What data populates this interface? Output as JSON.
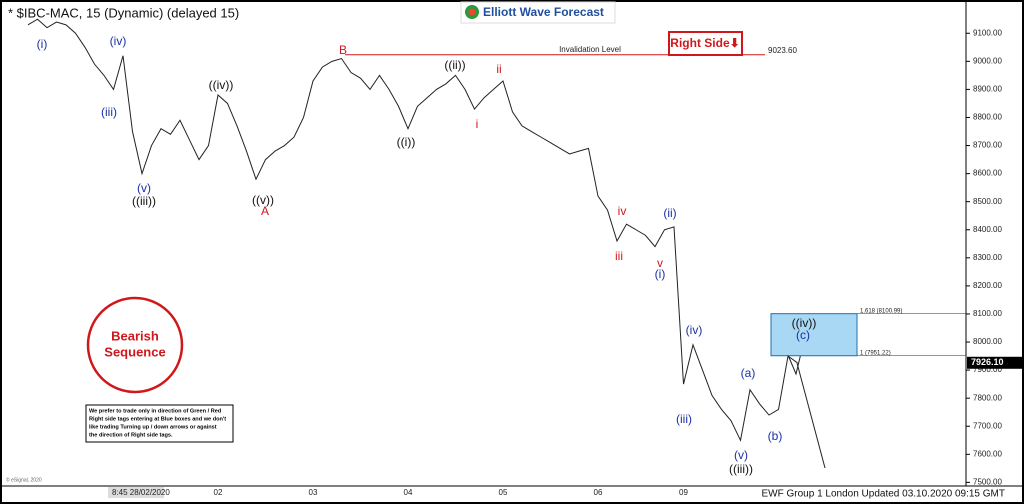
{
  "chart_data": {
    "type": "line",
    "title": "* $IBC-MAC, 15 (Dynamic) (delayed 15)",
    "brand": "Elliott Wave Forecast",
    "categories": [
      null,
      null,
      null,
      null,
      null,
      null,
      null,
      null,
      null,
      null,
      null,
      null,
      null,
      null,
      null,
      null,
      null,
      null,
      null,
      null,
      "02",
      null,
      null,
      null,
      null,
      null,
      null,
      null,
      null,
      null,
      "03",
      null,
      null,
      null,
      null,
      null,
      null,
      null,
      null,
      null,
      "04",
      null,
      null,
      null,
      null,
      null,
      null,
      null,
      null,
      null,
      "05",
      null,
      null,
      null,
      null,
      null,
      null,
      null,
      null,
      null,
      "06",
      null,
      null,
      null,
      null,
      null,
      null,
      null,
      null,
      "09",
      null,
      null,
      null,
      null,
      null,
      null,
      null,
      null,
      null,
      null,
      null,
      null
    ],
    "values": [
      9130,
      9150,
      9120,
      9140,
      9130,
      9100,
      9050,
      8990,
      8950,
      8900,
      9020,
      8750,
      8600,
      8700,
      8760,
      8740,
      8790,
      8720,
      8650,
      8700,
      8880,
      8850,
      8770,
      8680,
      8580,
      8650,
      8680,
      8700,
      8730,
      8800,
      8930,
      8980,
      9000,
      9010,
      8960,
      8940,
      8900,
      8950,
      8900,
      8840,
      8760,
      8840,
      8870,
      8900,
      8920,
      8950,
      8900,
      8830,
      8870,
      8900,
      8930,
      8820,
      8770,
      8750,
      8730,
      8710,
      8690,
      8670,
      8680,
      8690,
      8520,
      8470,
      8360,
      8420,
      8400,
      8380,
      8340,
      8400,
      8410,
      7850,
      7990,
      7900,
      7810,
      7760,
      7720,
      7650,
      7830,
      7780,
      7740,
      7760,
      7950,
      7926
    ],
    "color": "#222222",
    "ylim": [
      7480,
      9190
    ],
    "yticks": [
      {
        "value": 7500,
        "label": "7500.00"
      },
      {
        "value": 7600,
        "label": "7600.00"
      },
      {
        "value": 7700,
        "label": "7700.00"
      },
      {
        "value": 7800,
        "label": "7800.00"
      },
      {
        "value": 7900,
        "label": "7900.00"
      },
      {
        "value": 8000,
        "label": "8000.00"
      },
      {
        "value": 8100,
        "label": "8100.00"
      },
      {
        "value": 8200,
        "label": "8200.00"
      },
      {
        "value": 8300,
        "label": "8300.00"
      },
      {
        "value": 8400,
        "label": "8400.00"
      },
      {
        "value": 8500,
        "label": "8500.00"
      },
      {
        "value": 8600,
        "label": "8600.00"
      },
      {
        "value": 8700,
        "label": "8700.00"
      },
      {
        "value": 8800,
        "label": "8800.00"
      },
      {
        "value": 8900,
        "label": "8900.00"
      },
      {
        "value": 9000,
        "label": "9000.00"
      },
      {
        "value": 9100,
        "label": "9100.00"
      }
    ],
    "invalidation": {
      "text": "Invalidation Level",
      "value": 9023.6,
      "label": "9023.60"
    },
    "fib_box": {
      "upper": {
        "value": 8100.99,
        "label": "1.618 (8100.99)"
      },
      "lower": {
        "value": 7951.22,
        "label": "1 (7951.22)"
      }
    },
    "last_price": {
      "value": 7926.1,
      "label": "7926.10"
    },
    "right_side": "Right Side⬇",
    "bearish": [
      "Bearish",
      "Sequence"
    ],
    "disclaimer": [
      "We prefer to trade only in direction of Green / Red",
      "Right side tags entering at Blue boxes and we don't",
      "like trading Turning up / down arrows or against",
      "the direction of Right side tags."
    ],
    "cursor_time": "8:45 28/02/2020",
    "copyright": "© eSignal, 2020",
    "footer": "EWF Group 1 London Updated 03.10.2020 09:15 GMT",
    "annotations": [
      {
        "text": "(i)",
        "color": "#1a2fa8"
      },
      {
        "text": "(iv)",
        "color": "#1a2fa8"
      },
      {
        "text": "(iii)",
        "color": "#1a2fa8"
      },
      {
        "text": "(v)",
        "color": "#1a2fa8"
      },
      {
        "text": "((iii))",
        "color": "#111111"
      },
      {
        "text": "((iv))",
        "color": "#111111"
      },
      {
        "text": "((v))",
        "color": "#111111"
      },
      {
        "text": "A",
        "color": "#d0181c"
      },
      {
        "text": "B",
        "color": "#d0181c"
      },
      {
        "text": "((i))",
        "color": "#111111"
      },
      {
        "text": "((ii))",
        "color": "#111111"
      },
      {
        "text": "i",
        "color": "#d0181c"
      },
      {
        "text": "ii",
        "color": "#d0181c"
      },
      {
        "text": "iv",
        "color": "#d0181c"
      },
      {
        "text": "iii",
        "color": "#d0181c"
      },
      {
        "text": "v",
        "color": "#d0181c"
      },
      {
        "text": "(i)",
        "color": "#1a2fa8"
      },
      {
        "text": "(ii)",
        "color": "#1a2fa8"
      },
      {
        "text": "(iv)",
        "color": "#1a2fa8"
      },
      {
        "text": "(iii)",
        "color": "#1a2fa8"
      },
      {
        "text": "(v)",
        "color": "#1a2fa8"
      },
      {
        "text": "((iii))",
        "color": "#111111"
      },
      {
        "text": "(a)",
        "color": "#1a2fa8"
      },
      {
        "text": "(b)",
        "color": "#1a2fa8"
      },
      {
        "text": "((iv))",
        "color": "#111111"
      },
      {
        "text": "(c)",
        "color": "#1a2fa8"
      }
    ]
  }
}
